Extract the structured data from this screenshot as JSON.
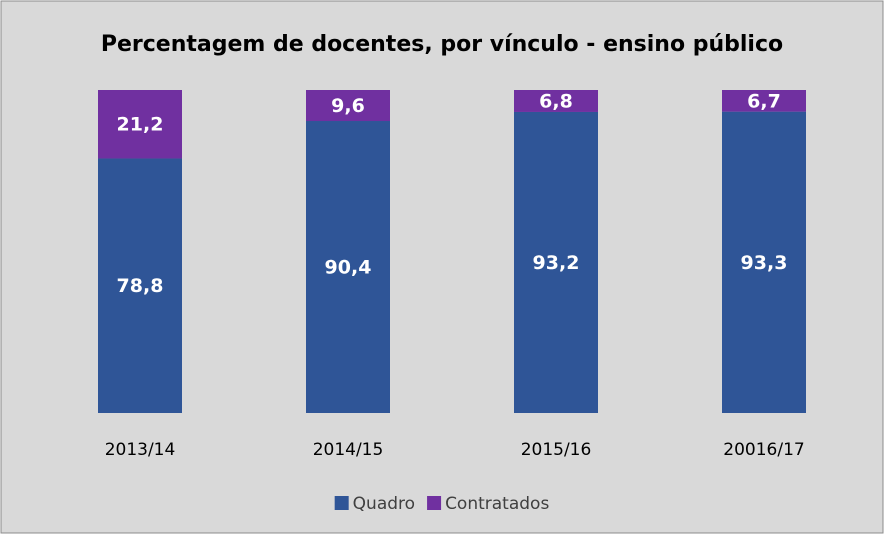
{
  "chart_data": {
    "type": "stacked_bar",
    "title": "Percentagem de docentes, por vínculo - ensino público",
    "categories": [
      "2013/14",
      "2014/15",
      "2015/16",
      "20016/17"
    ],
    "series": [
      {
        "name": "Quadro",
        "color": "#2f5597",
        "values": [
          78.8,
          90.4,
          93.2,
          93.3
        ],
        "value_labels": [
          "78,8",
          "90,4",
          "93,2",
          "93,3"
        ]
      },
      {
        "name": "Contratados",
        "color": "#7030a0",
        "values": [
          21.2,
          9.6,
          6.8,
          6.7
        ],
        "value_labels": [
          "21,2",
          "9,6",
          "6,8",
          "6,7"
        ]
      }
    ],
    "ylim": [
      0,
      100
    ],
    "legend": "bottom"
  }
}
